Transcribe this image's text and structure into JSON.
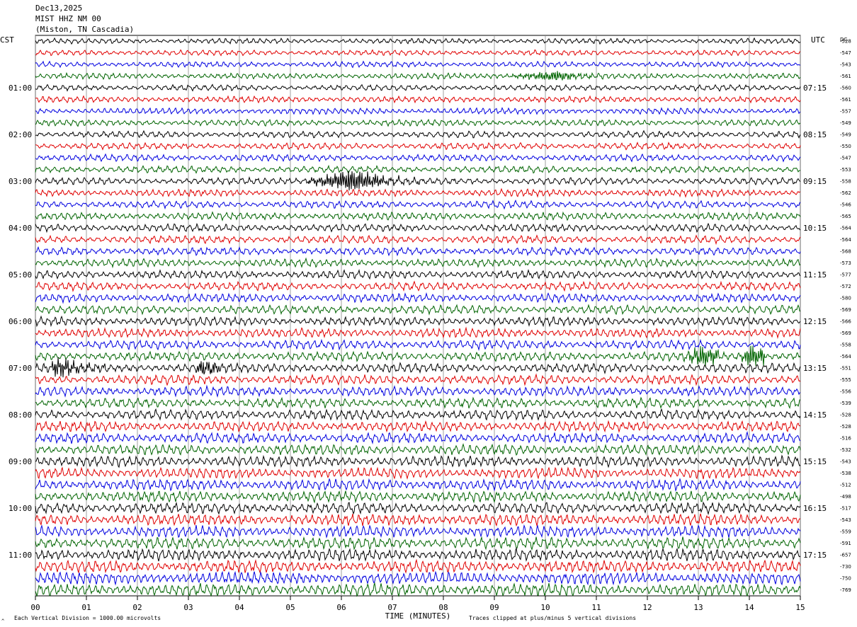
{
  "header": {
    "date": "Dec13,2025",
    "station": "MIST HHZ NM 00",
    "location": "(Miston, TN Cascadia)"
  },
  "labels": {
    "left_timezone": "CST",
    "right_timezone": "UTC",
    "dc_label": "DC",
    "xlabel": "TIME (MINUTES)",
    "footer_left": "Each Vertical Division = 1000.00 microvolts",
    "footer_right": "Traces clipped at plus/minus 5 vertical divisions",
    "corner_mark": "^"
  },
  "chart_data": {
    "type": "line",
    "title": "MIST HHZ NM 00",
    "xlabel": "TIME (MINUTES)",
    "ylabel": "",
    "xlim": [
      0,
      15
    ],
    "x_ticks": [
      "00",
      "01",
      "02",
      "03",
      "04",
      "05",
      "06",
      "07",
      "08",
      "09",
      "10",
      "11",
      "12",
      "13",
      "14",
      "15"
    ],
    "y_left_ticks": [
      "01:00",
      "02:00",
      "03:00",
      "04:00",
      "05:00",
      "06:00",
      "07:00",
      "08:00",
      "09:00",
      "10:00",
      "11:00"
    ],
    "y_right_ticks": [
      "07:15",
      "08:15",
      "09:15",
      "10:15",
      "11:15",
      "12:15",
      "13:15",
      "14:15",
      "15:15",
      "16:15",
      "17:15"
    ],
    "trace_count": 48,
    "trace_colors": [
      "#000000",
      "#e00000",
      "#0000e0",
      "#006400"
    ],
    "dc_offsets": [
      -528,
      -547,
      -543,
      -561,
      -560,
      -561,
      -557,
      -549,
      -549,
      -550,
      -547,
      -553,
      -558,
      -562,
      -546,
      -565,
      -564,
      -564,
      -568,
      -573,
      -577,
      -572,
      -580,
      -569,
      -566,
      -569,
      -558,
      -564,
      -551,
      -555,
      -556,
      -539,
      -528,
      -528,
      -516,
      -532,
      -543,
      -538,
      -512,
      -498,
      -517,
      -543,
      -559,
      -591,
      -657,
      -730,
      -750,
      -769
    ],
    "events": [
      {
        "trace": 12,
        "start": 5.2,
        "end": 9.0,
        "peak": 6.3,
        "amplitude": 1.0
      },
      {
        "trace": 3,
        "start": 9.2,
        "end": 11.0,
        "peak": 10.2,
        "amplitude": 0.45
      },
      {
        "trace": 27,
        "start": 12.7,
        "end": 13.4,
        "peak": 13.1,
        "amplitude": 0.9
      },
      {
        "trace": 27,
        "start": 13.8,
        "end": 14.3,
        "peak": 14.05,
        "amplitude": 1.0
      },
      {
        "trace": 28,
        "start": 0.3,
        "end": 5.2,
        "peak": 0.4,
        "amplitude": 0.9
      },
      {
        "trace": 28,
        "start": 3.1,
        "end": 3.6,
        "peak": 3.25,
        "amplitude": 0.7
      }
    ]
  }
}
